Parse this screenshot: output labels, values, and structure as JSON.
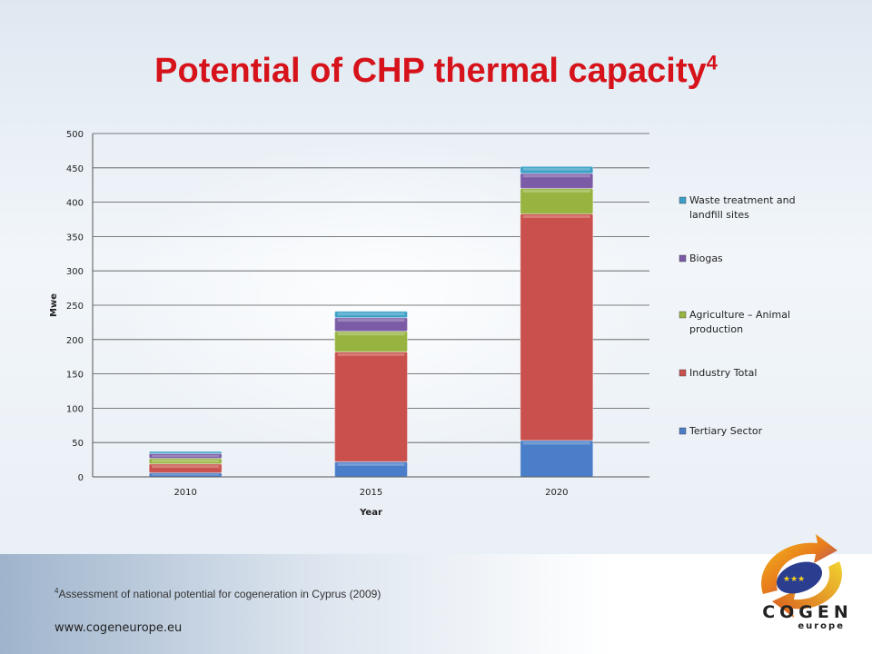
{
  "title": "Potential of CHP thermal capacity",
  "title_superscript": "4",
  "chart_data": {
    "type": "bar",
    "stacked": true,
    "categories": [
      "2010",
      "2015",
      "2020"
    ],
    "xlabel": "Year",
    "ylabel": "Mwe",
    "ylim": [
      0,
      500
    ],
    "yticks": [
      0,
      50,
      100,
      150,
      200,
      250,
      300,
      350,
      400,
      450,
      500
    ],
    "grid": true,
    "legend_position": "right",
    "series": [
      {
        "name": "Tertiary Sector",
        "color": "#4a7ec8",
        "values": [
          6,
          22,
          53
        ]
      },
      {
        "name": "Industry Total",
        "color": "#c9504c",
        "values": [
          13,
          160,
          330
        ]
      },
      {
        "name": "Agriculture – Animal production",
        "color": "#96b43f",
        "values": [
          8,
          30,
          37
        ]
      },
      {
        "name": "Biogas",
        "color": "#7b5ba6",
        "values": [
          7,
          20,
          22
        ]
      },
      {
        "name": "Waste treatment and landfill sites",
        "color": "#3aa0c6",
        "values": [
          3,
          9,
          10
        ]
      }
    ]
  },
  "footnote_superscript": "4",
  "footnote": "Assessment of national potential for cogeneration in Cyprus (2009)",
  "url": "www.cogeneurope.eu",
  "logo": {
    "text": "COGEN",
    "subtext": "europe"
  }
}
